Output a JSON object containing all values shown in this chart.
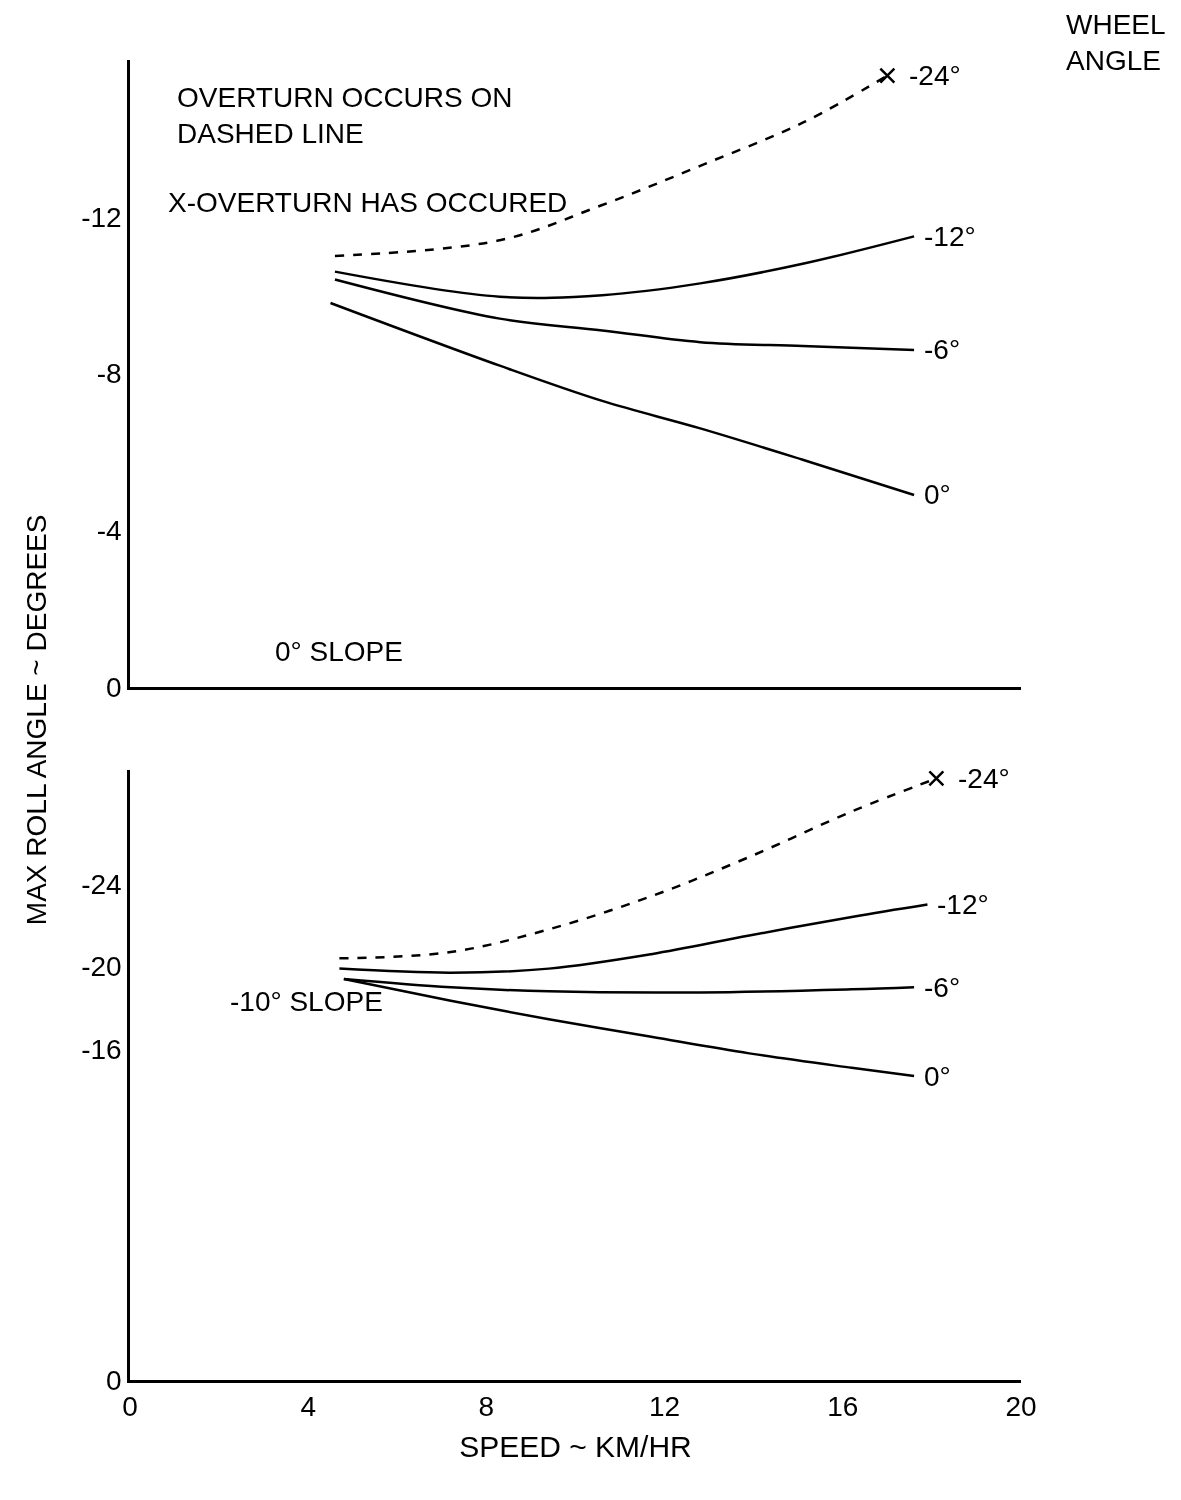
{
  "chart_data": [
    {
      "type": "line",
      "ylabel": "MAX ROLL ANGLE ~ DEGREES",
      "legend_title": "WHEEL\nANGLE",
      "xlim": [
        0,
        20
      ],
      "xticks": [
        0,
        4,
        8,
        12,
        16,
        20
      ],
      "ylim": [
        0,
        -16
      ],
      "yticks": [
        0,
        -4,
        -8,
        -12
      ],
      "tick_labels": "y",
      "annotations": [
        "OVERTURN OCCURS ON\nDASHED LINE",
        "X-OVERTURN HAS OCCURED",
        "0° SLOPE"
      ],
      "series": [
        {
          "name": "-24°",
          "color": "#000000",
          "line_style": "dashed",
          "x": [
            4.6,
            8.3,
            10.6,
            12.8,
            15.1,
            17.0
          ],
          "values": [
            -11.0,
            -11.4,
            -12.3,
            -13.3,
            -14.4,
            -15.6
          ]
        },
        {
          "type": "scatter",
          "marker": "cross",
          "color": "#000000",
          "x": [
            17.0
          ],
          "values": [
            -15.6
          ]
        },
        {
          "name": "-12°",
          "color": "#000000",
          "line_style": "solid",
          "x": [
            4.6,
            8.3,
            10.6,
            12.8,
            15.1,
            17.6
          ],
          "values": [
            -10.6,
            -9.96,
            -10.0,
            -10.3,
            -10.8,
            -11.5
          ]
        },
        {
          "name": "-6°",
          "color": "#000000",
          "line_style": "solid",
          "x": [
            4.6,
            8.3,
            10.6,
            12.8,
            15.1,
            17.6
          ],
          "values": [
            -10.4,
            -9.4,
            -9.1,
            -8.8,
            -8.7,
            -8.6
          ]
        },
        {
          "name": "0°",
          "color": "#000000",
          "line_style": "solid",
          "x": [
            4.5,
            8.3,
            10.6,
            12.8,
            15.1,
            17.6
          ],
          "values": [
            -9.8,
            -8.2,
            -7.3,
            -6.6,
            -5.8,
            -4.9
          ]
        }
      ]
    },
    {
      "type": "line",
      "xlabel": "SPEED ~ KM/HR",
      "xlim": [
        0,
        20
      ],
      "xticks": [
        0,
        4,
        8,
        12,
        16,
        20
      ],
      "ylim": [
        0,
        -29.5
      ],
      "yticks": [
        0,
        -16,
        -20,
        -24
      ],
      "annotations": [
        "-10° SLOPE"
      ],
      "series": [
        {
          "name": "-24°",
          "color": "#000000",
          "line_style": "dashed",
          "x": [
            4.7,
            7.2,
            9.4,
            11.7,
            13.9,
            16.2,
            18.1
          ],
          "values": [
            -20.4,
            -20.7,
            -21.8,
            -23.4,
            -25.3,
            -27.5,
            -29.1
          ]
        },
        {
          "type": "scatter",
          "marker": "cross",
          "color": "#000000",
          "x": [
            18.1
          ],
          "values": [
            -29.1
          ]
        },
        {
          "name": "-12°",
          "color": "#000000",
          "line_style": "solid",
          "x": [
            4.7,
            7.2,
            9.4,
            11.7,
            13.9,
            16.2,
            17.9
          ],
          "values": [
            -19.9,
            -19.7,
            -19.9,
            -20.6,
            -21.5,
            -22.4,
            -23.0
          ]
        },
        {
          "name": "-6°",
          "color": "#000000",
          "line_style": "solid",
          "x": [
            4.8,
            7.2,
            9.4,
            12.8,
            16.2,
            17.6
          ],
          "values": [
            -19.4,
            -19.0,
            -18.8,
            -18.75,
            -18.9,
            -19.0
          ]
        },
        {
          "name": "0°",
          "color": "#000000",
          "line_style": "solid",
          "x": [
            4.8,
            7.2,
            9.4,
            11.7,
            13.9,
            16.2,
            17.6
          ],
          "values": [
            -19.4,
            -18.35,
            -17.45,
            -16.6,
            -15.8,
            -15.1,
            -14.7
          ]
        }
      ]
    }
  ]
}
